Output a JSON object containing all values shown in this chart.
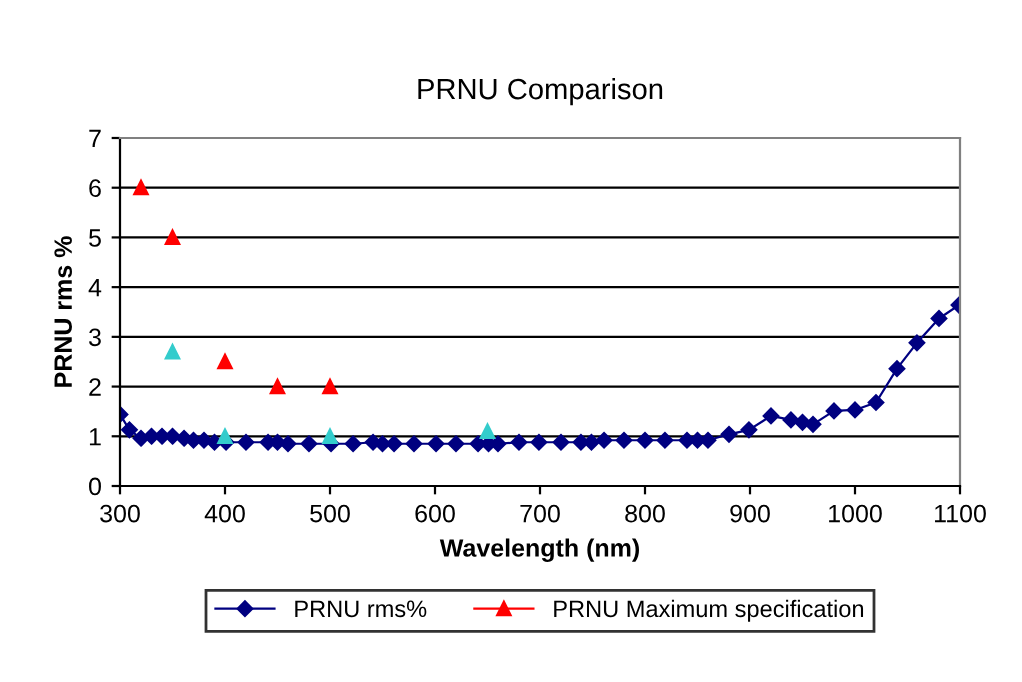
{
  "chart_data": {
    "type": "line",
    "title": "PRNU Comparison",
    "xlabel": "Wavelength (nm)",
    "ylabel": "PRNU rms %",
    "xlim": [
      300,
      1100
    ],
    "xticks": [
      300,
      400,
      500,
      600,
      700,
      800,
      900,
      1000,
      1100
    ],
    "ylim": [
      0,
      7
    ],
    "yticks": [
      0,
      1,
      2,
      3,
      4,
      5,
      6,
      7
    ],
    "grid": "y",
    "legend": "bottom",
    "series": [
      {
        "name": "PRNU rms%",
        "marker": "diamond",
        "color": "#000080",
        "x": [
          300,
          309,
          320,
          330,
          340,
          350,
          361,
          370,
          380,
          390,
          401,
          420,
          441,
          450,
          460,
          480,
          501,
          522,
          541,
          550,
          561,
          580,
          601,
          620,
          641,
          651,
          660,
          680,
          699,
          720,
          739,
          749,
          761,
          780,
          800,
          819,
          840,
          850,
          860,
          880,
          899,
          920,
          939,
          950,
          960,
          980,
          1000,
          1020,
          1040,
          1059,
          1080,
          1099
        ],
        "values": [
          1.44,
          1.13,
          0.96,
          1.0,
          1.0,
          1.0,
          0.96,
          0.92,
          0.92,
          0.88,
          0.88,
          0.88,
          0.88,
          0.88,
          0.85,
          0.85,
          0.85,
          0.85,
          0.88,
          0.85,
          0.85,
          0.85,
          0.85,
          0.85,
          0.85,
          0.85,
          0.85,
          0.88,
          0.88,
          0.88,
          0.88,
          0.88,
          0.92,
          0.92,
          0.92,
          0.92,
          0.92,
          0.92,
          0.92,
          1.04,
          1.13,
          1.41,
          1.33,
          1.28,
          1.24,
          1.51,
          1.53,
          1.68,
          2.36,
          2.88,
          3.37,
          3.64
        ]
      },
      {
        "name": "PRNU Maximum specification",
        "type": "scatter",
        "marker": "triangle",
        "color": "#ff0000",
        "x": [
          320,
          350,
          400,
          450,
          500
        ],
        "values": [
          6,
          5,
          2.5,
          2,
          2
        ]
      },
      {
        "type": "scatter",
        "marker": "triangle",
        "color": "#33cccc",
        "x": [
          350,
          400,
          500,
          650
        ],
        "values": [
          2.7,
          1.0,
          1.0,
          1.1
        ]
      }
    ]
  }
}
